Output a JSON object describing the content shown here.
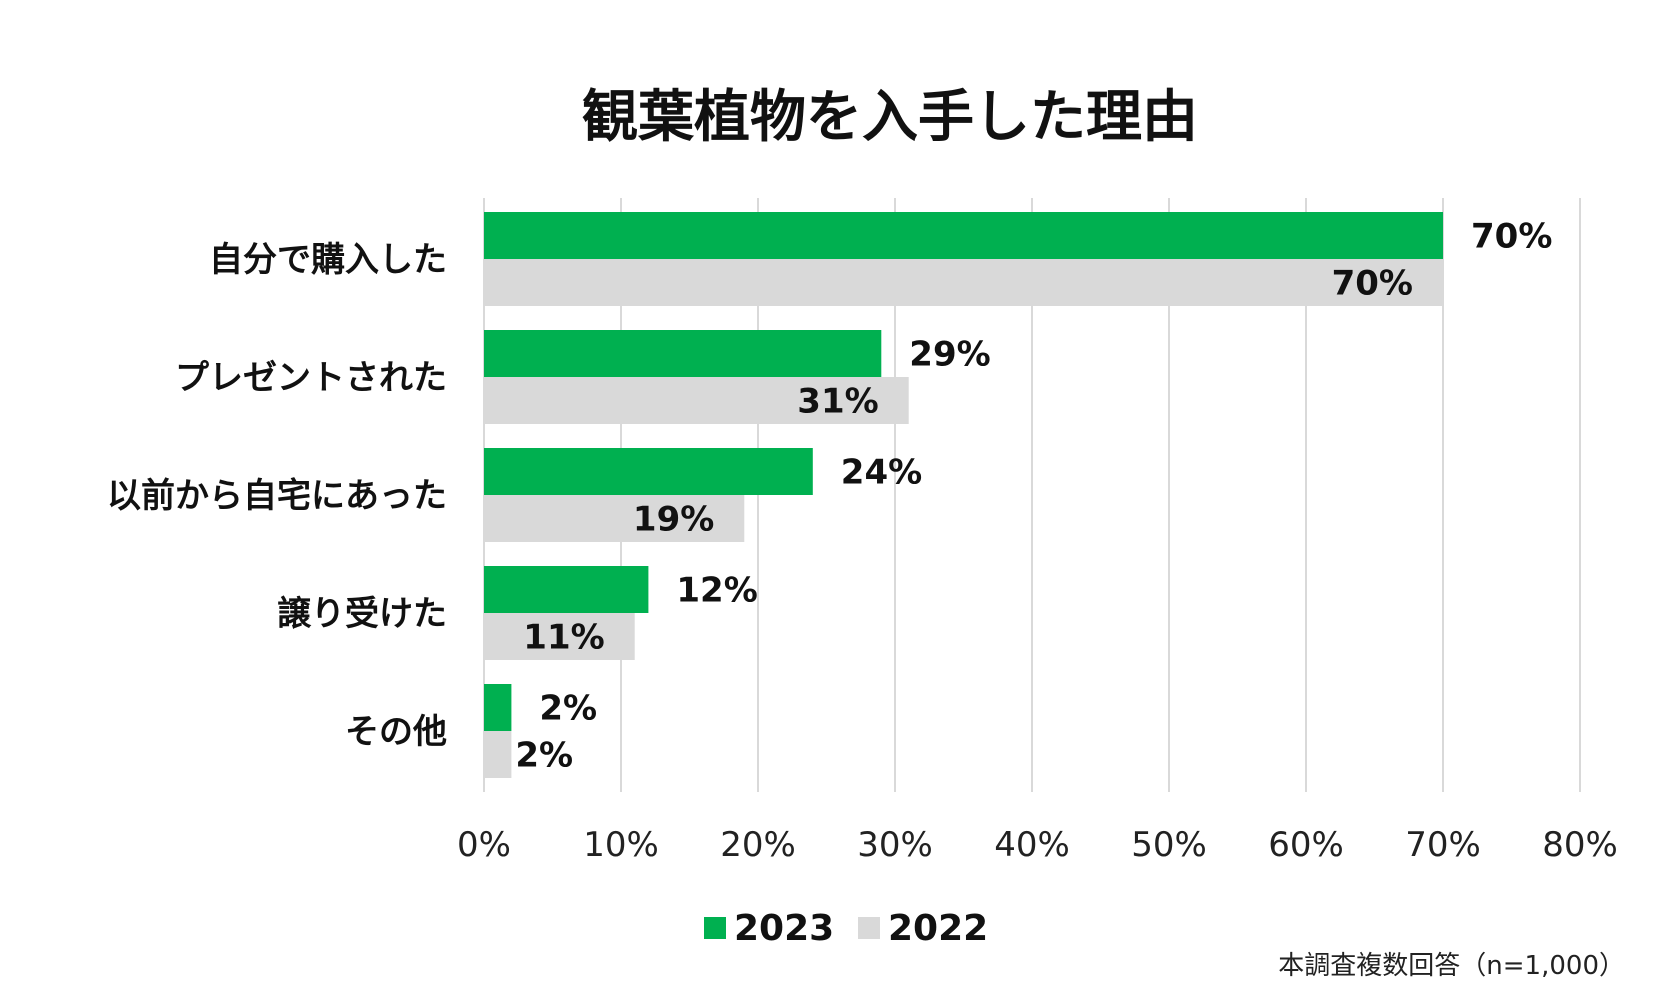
{
  "chart_data": {
    "type": "bar",
    "orientation": "horizontal",
    "title": "観葉植物を入手した理由",
    "categories": [
      "自分で購入した",
      "プレゼントされた",
      "以前から自宅にあった",
      "譲り受けた",
      "その他"
    ],
    "series": [
      {
        "name": "2023",
        "color": "#00b050",
        "values": [
          70,
          29,
          24,
          12,
          2
        ],
        "labels": [
          "70%",
          "29%",
          "24%",
          "12%",
          "2%"
        ]
      },
      {
        "name": "2022",
        "color": "#d9d9d9",
        "values": [
          70,
          31,
          19,
          11,
          2
        ],
        "labels": [
          "70%",
          "31%",
          "19%",
          "11%",
          "2%"
        ]
      }
    ],
    "xlim": [
      0,
      80
    ],
    "xticks": [
      0,
      10,
      20,
      30,
      40,
      50,
      60,
      70,
      80
    ],
    "xtick_labels": [
      "0%",
      "10%",
      "20%",
      "30%",
      "40%",
      "50%",
      "60%",
      "70%",
      "80%"
    ],
    "grid": true,
    "gridline_color": "#d9d9d9",
    "legend_position": "bottom",
    "note": "本調査複数回答（n=1,000）"
  }
}
